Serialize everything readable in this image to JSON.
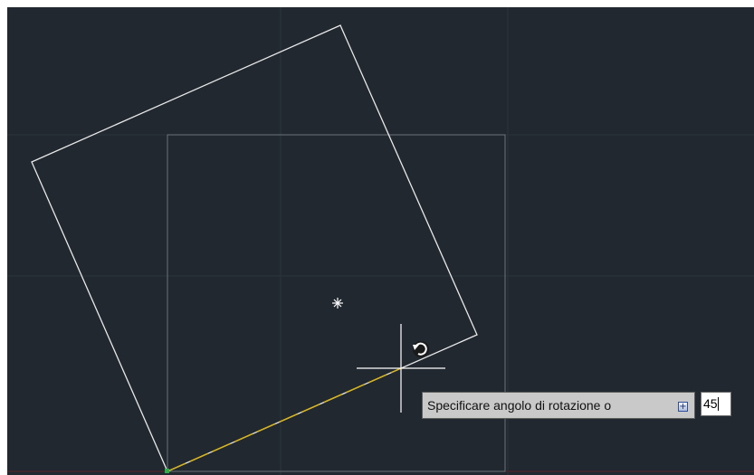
{
  "command_prompt": {
    "label": "Specificare angolo di rotazione o",
    "options_icon": "expand-options-icon",
    "input_value": "45"
  },
  "colors": {
    "canvas_background": "#212830",
    "rotated_square": "#e8e8e8",
    "original_square": "#6d7278",
    "rubber_band": "#d8b418",
    "grid_line": "#2b333d"
  }
}
